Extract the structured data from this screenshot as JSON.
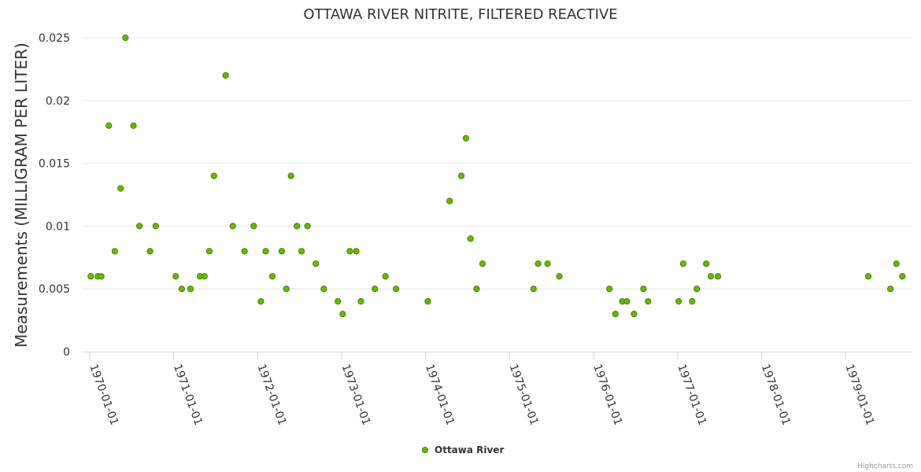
{
  "chart_data": {
    "type": "scatter",
    "title": "OTTAWA RIVER NITRITE, FILTERED REACTIVE",
    "ylabel": "Measurements (MILLIGRAM PER LITER)",
    "xlabel": "",
    "ylim": [
      0,
      0.025
    ],
    "yticks": [
      "0",
      "0.005",
      "0.01",
      "0.015",
      "0.02",
      "0.025"
    ],
    "xlim": [
      "1969-12-01",
      "1979-10-15"
    ],
    "xticks": [
      "1970-01-01",
      "1971-01-01",
      "1972-01-01",
      "1973-01-01",
      "1974-01-01",
      "1975-01-01",
      "1976-01-01",
      "1977-01-01",
      "1978-01-01",
      "1979-01-01"
    ],
    "grid": true,
    "legend_position": "bottom-center",
    "color": "#7cb5ec",
    "marker_fill": "#66bb00",
    "marker_stroke": "#4a7a00",
    "series": [
      {
        "name": "Ottawa River",
        "points": [
          [
            "1970-01-05",
            0.006
          ],
          [
            "1970-02-05",
            0.006
          ],
          [
            "1970-02-20",
            0.006
          ],
          [
            "1970-03-25",
            0.018
          ],
          [
            "1970-04-20",
            0.008
          ],
          [
            "1970-05-15",
            0.013
          ],
          [
            "1970-06-05",
            0.025
          ],
          [
            "1970-07-10",
            0.018
          ],
          [
            "1970-08-05",
            0.01
          ],
          [
            "1970-09-20",
            0.008
          ],
          [
            "1970-10-15",
            0.01
          ],
          [
            "1971-01-10",
            0.006
          ],
          [
            "1971-02-05",
            0.005
          ],
          [
            "1971-03-15",
            0.005
          ],
          [
            "1971-04-25",
            0.006
          ],
          [
            "1971-05-15",
            0.006
          ],
          [
            "1971-06-05",
            0.008
          ],
          [
            "1971-06-25",
            0.014
          ],
          [
            "1971-08-15",
            0.022
          ],
          [
            "1971-09-15",
            0.01
          ],
          [
            "1971-11-05",
            0.008
          ],
          [
            "1971-12-15",
            0.01
          ],
          [
            "1972-01-15",
            0.004
          ],
          [
            "1972-02-05",
            0.008
          ],
          [
            "1972-03-05",
            0.006
          ],
          [
            "1972-04-15",
            0.008
          ],
          [
            "1972-05-05",
            0.005
          ],
          [
            "1972-05-25",
            0.014
          ],
          [
            "1972-06-20",
            0.01
          ],
          [
            "1972-07-10",
            0.008
          ],
          [
            "1972-08-05",
            0.01
          ],
          [
            "1972-09-10",
            0.007
          ],
          [
            "1972-10-15",
            0.005
          ],
          [
            "1972-12-15",
            0.004
          ],
          [
            "1973-01-05",
            0.003
          ],
          [
            "1973-02-05",
            0.008
          ],
          [
            "1973-03-05",
            0.008
          ],
          [
            "1973-03-25",
            0.004
          ],
          [
            "1973-05-25",
            0.005
          ],
          [
            "1973-07-10",
            0.006
          ],
          [
            "1973-08-25",
            0.005
          ],
          [
            "1974-01-10",
            0.004
          ],
          [
            "1974-04-15",
            0.012
          ],
          [
            "1974-06-05",
            0.014
          ],
          [
            "1974-06-25",
            0.017
          ],
          [
            "1974-07-15",
            0.009
          ],
          [
            "1974-08-10",
            0.005
          ],
          [
            "1974-09-05",
            0.007
          ],
          [
            "1975-04-15",
            0.005
          ],
          [
            "1975-05-05",
            0.007
          ],
          [
            "1975-06-15",
            0.007
          ],
          [
            "1975-08-05",
            0.006
          ],
          [
            "1976-03-10",
            0.005
          ],
          [
            "1976-04-05",
            0.003
          ],
          [
            "1976-05-05",
            0.004
          ],
          [
            "1976-05-25",
            0.004
          ],
          [
            "1976-06-25",
            0.003
          ],
          [
            "1976-08-05",
            0.005
          ],
          [
            "1976-08-25",
            0.004
          ],
          [
            "1977-01-05",
            0.004
          ],
          [
            "1977-01-25",
            0.007
          ],
          [
            "1977-03-05",
            0.004
          ],
          [
            "1977-03-25",
            0.005
          ],
          [
            "1977-05-05",
            0.007
          ],
          [
            "1977-05-25",
            0.006
          ],
          [
            "1977-06-25",
            0.006
          ],
          [
            "1979-04-10",
            0.006
          ],
          [
            "1979-07-15",
            0.005
          ],
          [
            "1979-08-10",
            0.007
          ],
          [
            "1979-09-05",
            0.006
          ]
        ]
      }
    ]
  },
  "credit": "Highcharts.com"
}
